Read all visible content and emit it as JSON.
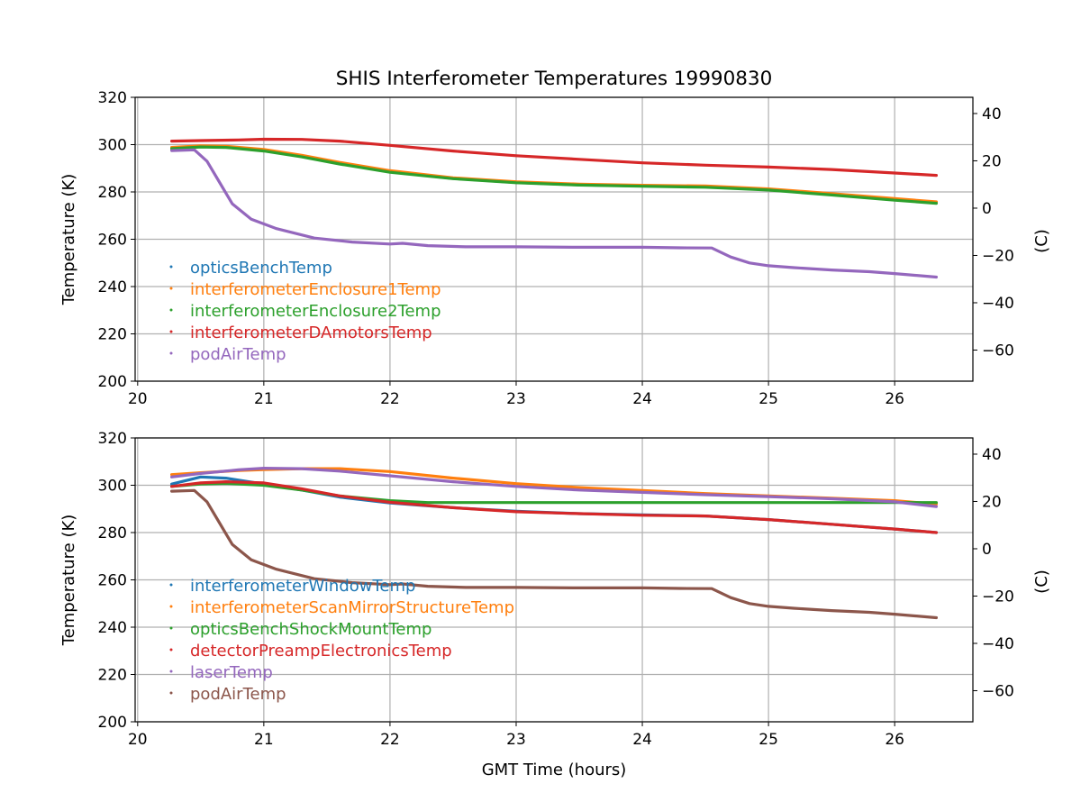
{
  "title": "SHIS Interferometer Temperatures 19990830",
  "xlabel": "GMT Time (hours)",
  "chart_data": [
    {
      "type": "scatter",
      "ylabel_left": "Temperature (K)",
      "ylabel_right": "(C)",
      "xlim": [
        19.98,
        26.62
      ],
      "ylim": [
        200,
        320
      ],
      "xticks": [
        "20",
        "21",
        "22",
        "23",
        "24",
        "25",
        "26"
      ],
      "yticks": [
        "200",
        "220",
        "240",
        "260",
        "280",
        "300",
        "320"
      ],
      "right_ticks": [
        "40",
        "20",
        "0",
        "−20",
        "−40",
        "−60"
      ],
      "right_tick_values": [
        40,
        20,
        0,
        -20,
        -40,
        -60
      ],
      "grid": true,
      "legend_position": "lower-left",
      "series": [
        {
          "name": "opticsBenchTemp",
          "color": "#1f77b4",
          "x": [
            20.27,
            20.5,
            20.7,
            21.0,
            21.3,
            21.6,
            22.0,
            22.5,
            23.0,
            23.5,
            24.0,
            24.5,
            25.0,
            25.5,
            26.0,
            26.33
          ],
          "y": [
            298.5,
            299.3,
            299.0,
            297.5,
            295.0,
            292.0,
            288.5,
            285.7,
            284.0,
            283.0,
            282.5,
            282.2,
            281.0,
            279.0,
            276.8,
            275.5
          ]
        },
        {
          "name": "interferometerEnclosure1Temp",
          "color": "#ff7f0e",
          "x": [
            20.27,
            20.5,
            20.7,
            21.0,
            21.3,
            21.6,
            22.0,
            22.5,
            23.0,
            23.5,
            24.0,
            24.5,
            25.0,
            25.5,
            26.0,
            26.33
          ],
          "y": [
            298.8,
            299.5,
            299.3,
            298.0,
            295.5,
            292.5,
            289.0,
            286.0,
            284.3,
            283.3,
            282.8,
            282.5,
            281.3,
            279.3,
            277.2,
            275.8
          ]
        },
        {
          "name": "interferometerEnclosure2Temp",
          "color": "#2ca02c",
          "x": [
            20.27,
            20.5,
            20.7,
            21.0,
            21.3,
            21.6,
            22.0,
            22.5,
            23.0,
            23.5,
            24.0,
            24.5,
            25.0,
            25.5,
            26.0,
            26.33
          ],
          "y": [
            298.3,
            299.0,
            298.8,
            297.3,
            294.8,
            291.8,
            288.3,
            285.6,
            283.9,
            282.9,
            282.4,
            282.0,
            280.8,
            278.7,
            276.5,
            275.2
          ]
        },
        {
          "name": "interferometerDAmotorsTemp",
          "color": "#d62728",
          "x": [
            20.27,
            20.5,
            20.8,
            21.0,
            21.3,
            21.6,
            22.0,
            22.5,
            23.0,
            23.5,
            24.0,
            24.5,
            25.0,
            25.5,
            26.0,
            26.33
          ],
          "y": [
            301.5,
            301.7,
            302.0,
            302.3,
            302.2,
            301.5,
            299.7,
            297.3,
            295.3,
            293.8,
            292.3,
            291.3,
            290.5,
            289.5,
            288.0,
            287.0
          ]
        },
        {
          "name": "podAirTemp",
          "color": "#9467bd",
          "x": [
            20.27,
            20.45,
            20.55,
            20.65,
            20.75,
            20.9,
            21.1,
            21.4,
            21.7,
            22.0,
            22.1,
            22.3,
            22.6,
            23.0,
            23.5,
            24.0,
            24.3,
            24.55,
            24.7,
            24.85,
            25.0,
            25.2,
            25.5,
            25.8,
            26.0,
            26.33
          ],
          "y": [
            297.5,
            297.8,
            293.0,
            284.0,
            275.0,
            268.5,
            264.5,
            260.5,
            258.8,
            258.0,
            258.3,
            257.3,
            256.8,
            256.8,
            256.6,
            256.6,
            256.4,
            256.3,
            252.5,
            250.0,
            248.8,
            248.0,
            247.0,
            246.3,
            245.5,
            244.0
          ]
        }
      ]
    },
    {
      "type": "scatter",
      "ylabel_left": "Temperature (K)",
      "ylabel_right": "(C)",
      "xlim": [
        19.98,
        26.62
      ],
      "ylim": [
        200,
        320
      ],
      "xticks": [
        "20",
        "21",
        "22",
        "23",
        "24",
        "25",
        "26"
      ],
      "yticks": [
        "200",
        "220",
        "240",
        "260",
        "280",
        "300",
        "320"
      ],
      "right_ticks": [
        "40",
        "20",
        "0",
        "−20",
        "−40",
        "−60"
      ],
      "right_tick_values": [
        40,
        20,
        0,
        -20,
        -40,
        -60
      ],
      "grid": true,
      "legend_position": "lower-left",
      "series": [
        {
          "name": "interferometerWindowTemp",
          "color": "#1f77b4",
          "x": [
            20.27,
            20.5,
            20.7,
            21.0,
            21.3,
            21.6,
            22.0,
            22.5,
            23.0,
            23.5,
            24.0,
            24.5,
            25.0,
            25.5,
            26.0,
            26.33
          ],
          "y": [
            300.5,
            303.5,
            303.0,
            300.5,
            298.0,
            295.0,
            292.5,
            290.5,
            289.0,
            288.0,
            287.5,
            287.0,
            285.5,
            283.5,
            281.5,
            280.0
          ]
        },
        {
          "name": "interferometerScanMirrorStructureTemp",
          "color": "#ff7f0e",
          "x": [
            20.27,
            20.5,
            20.8,
            21.0,
            21.3,
            21.6,
            22.0,
            22.5,
            23.0,
            23.5,
            24.0,
            24.5,
            25.0,
            25.5,
            26.0,
            26.33
          ],
          "y": [
            304.5,
            305.3,
            306.2,
            306.6,
            307.0,
            307.0,
            305.8,
            303.0,
            300.7,
            299.0,
            297.8,
            296.5,
            295.5,
            294.5,
            293.5,
            292.0
          ]
        },
        {
          "name": "opticsBenchShockMountTemp",
          "color": "#2ca02c",
          "x": [
            20.27,
            20.5,
            20.7,
            21.0,
            21.3,
            21.6,
            22.0,
            22.3,
            22.6,
            23.0,
            23.5,
            24.0,
            24.5,
            25.0,
            25.5,
            26.0,
            26.33
          ],
          "y": [
            299.5,
            300.5,
            300.8,
            300.0,
            298.0,
            295.5,
            293.5,
            292.7,
            292.7,
            292.7,
            292.7,
            292.7,
            292.7,
            292.7,
            292.7,
            292.7,
            292.7
          ]
        },
        {
          "name": "detectorPreampElectronicsTemp",
          "color": "#d62728",
          "x": [
            20.27,
            20.5,
            20.7,
            21.0,
            21.3,
            21.6,
            22.0,
            22.5,
            23.0,
            23.5,
            24.0,
            24.5,
            25.0,
            25.5,
            26.0,
            26.33
          ],
          "y": [
            299.5,
            301.0,
            301.5,
            301.0,
            298.5,
            295.5,
            292.8,
            290.5,
            288.8,
            288.0,
            287.3,
            287.0,
            285.5,
            283.5,
            281.5,
            280.0
          ]
        },
        {
          "name": "laserTemp",
          "color": "#9467bd",
          "x": [
            20.27,
            20.5,
            20.8,
            21.0,
            21.3,
            21.6,
            22.0,
            22.5,
            23.0,
            23.5,
            24.0,
            24.5,
            25.0,
            25.5,
            26.0,
            26.33
          ],
          "y": [
            303.5,
            305.0,
            306.5,
            307.2,
            307.0,
            306.0,
            304.0,
            301.5,
            299.5,
            298.0,
            297.0,
            296.0,
            295.2,
            294.3,
            293.0,
            291.0
          ]
        },
        {
          "name": "podAirTemp",
          "color": "#8c564b",
          "x": [
            20.27,
            20.45,
            20.55,
            20.65,
            20.75,
            20.9,
            21.1,
            21.4,
            21.7,
            22.0,
            22.1,
            22.3,
            22.6,
            23.0,
            23.5,
            24.0,
            24.3,
            24.55,
            24.7,
            24.85,
            25.0,
            25.2,
            25.5,
            25.8,
            26.0,
            26.33
          ],
          "y": [
            297.5,
            297.8,
            293.0,
            284.0,
            275.0,
            268.5,
            264.5,
            260.5,
            258.8,
            258.0,
            258.3,
            257.3,
            256.8,
            256.8,
            256.6,
            256.6,
            256.4,
            256.3,
            252.5,
            250.0,
            248.8,
            248.0,
            247.0,
            246.3,
            245.5,
            244.0
          ]
        }
      ]
    }
  ]
}
